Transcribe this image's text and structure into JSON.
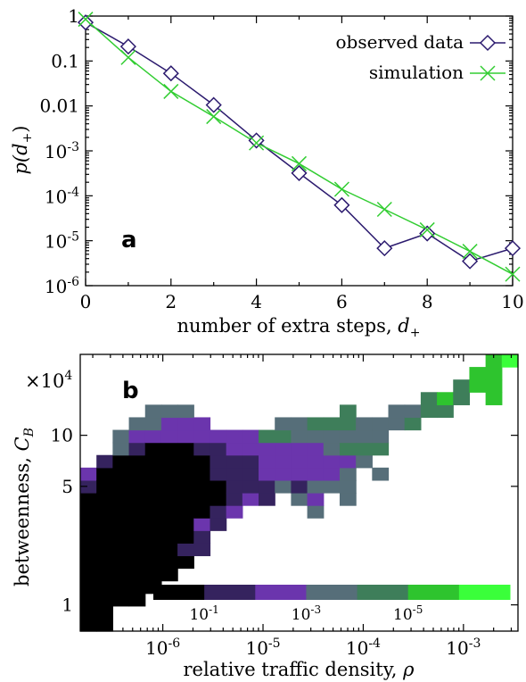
{
  "chart_data": [
    {
      "panel_label": "a",
      "type": "line",
      "xlabel": "number of extra steps, d+",
      "xlabel_main": "number of extra steps, ",
      "xlabel_var": "d",
      "xlabel_sub": "+",
      "ylabel": "p(d+)",
      "ylabel_main": "p(d",
      "ylabel_sub": "+",
      "ylabel_end": ")",
      "y_scale": "log",
      "xlim": [
        0,
        10
      ],
      "ylim": [
        1e-06,
        1
      ],
      "x_ticks": [
        0,
        2,
        4,
        6,
        8,
        10
      ],
      "y_ticks": [
        {
          "value": 1,
          "label": "1"
        },
        {
          "value": 0.1,
          "label": "0.1"
        },
        {
          "value": 0.01,
          "label": "0.01"
        },
        {
          "value": 0.001,
          "base": "10",
          "exp": "-3"
        },
        {
          "value": 0.0001,
          "base": "10",
          "exp": "-4"
        },
        {
          "value": 1e-05,
          "base": "10",
          "exp": "-5"
        },
        {
          "value": 1e-06,
          "base": "10",
          "exp": "-6"
        }
      ],
      "legend_position": "top-right",
      "series": [
        {
          "name": "observed data",
          "marker": "diamond",
          "color": "#2b1a6e",
          "x": [
            0,
            1,
            2,
            3,
            4,
            5,
            6,
            7,
            8,
            9,
            10
          ],
          "y": [
            0.72,
            0.21,
            0.053,
            0.0105,
            0.0017,
            0.00032,
            6.2e-05,
            6.8e-06,
            1.45e-05,
            3.5e-06,
            6.8e-06
          ]
        },
        {
          "name": "simulation",
          "marker": "x",
          "color": "#32cd32",
          "x": [
            0,
            1,
            2,
            3,
            4,
            5,
            6,
            7,
            8,
            9,
            10
          ],
          "y": [
            0.85,
            0.12,
            0.021,
            0.0058,
            0.0015,
            0.00052,
            0.00014,
            5e-05,
            1.75e-05,
            5.8e-06,
            1.8e-06
          ]
        }
      ]
    },
    {
      "panel_label": "b",
      "type": "heatmap",
      "xlabel": "relative traffic density, ρ",
      "xlabel_main": "relative traffic density, ",
      "xlabel_var": "ρ",
      "ylabel": "betweenness, CB",
      "ylabel_main": "betweenness, ",
      "ylabel_var": "C",
      "ylabel_sub": "B",
      "x_scale": "log",
      "y_scale": "log",
      "xlim": [
        1.5e-07,
        0.0035
      ],
      "ylim": [
        7000,
        300000
      ],
      "y_multiplier": {
        "symbol": "×10",
        "exp": "4"
      },
      "x_ticks": [
        {
          "value": 1e-06,
          "base": "10",
          "exp": "-6"
        },
        {
          "value": 1e-05,
          "base": "10",
          "exp": "-5"
        },
        {
          "value": 0.0001,
          "base": "10",
          "exp": "-4"
        },
        {
          "value": 0.001,
          "base": "10",
          "exp": "-3"
        }
      ],
      "y_ticks": [
        {
          "value": 10000,
          "label": "1"
        },
        {
          "value": 50000,
          "label": "5"
        },
        {
          "value": 100000,
          "label": "10"
        }
      ],
      "colorbar": {
        "colors": [
          "#000000",
          "#35235e",
          "#6b35ad",
          "#566e79",
          "#3e7e5a",
          "#2ec42e",
          "#3aff3a"
        ],
        "labels": [
          {
            "base": "10",
            "exp": "-1"
          },
          {
            "base": "10",
            "exp": "-3"
          },
          {
            "base": "10",
            "exp": "-5"
          }
        ]
      },
      "grid": {
        "columns": 27,
        "rows": 22,
        "x_start": 1.5e-07,
        "x_end": 0.0035,
        "y_start": 7000,
        "y_end": 300000
      },
      "cells": [
        [
          0,
          0,
          0
        ],
        [
          0,
          1,
          0
        ],
        [
          0,
          2,
          0
        ],
        [
          0,
          3,
          0
        ],
        [
          0,
          4,
          0
        ],
        [
          0,
          5,
          0
        ],
        [
          0,
          6,
          0
        ],
        [
          0,
          7,
          0
        ],
        [
          0,
          8,
          0
        ],
        [
          0,
          9,
          0
        ],
        [
          0,
          10,
          0
        ],
        [
          0,
          11,
          1
        ],
        [
          0,
          12,
          2
        ],
        [
          1,
          0,
          0
        ],
        [
          1,
          1,
          0
        ],
        [
          1,
          2,
          0
        ],
        [
          1,
          3,
          0
        ],
        [
          1,
          4,
          0
        ],
        [
          1,
          5,
          0
        ],
        [
          1,
          6,
          0
        ],
        [
          1,
          7,
          0
        ],
        [
          1,
          8,
          0
        ],
        [
          1,
          9,
          0
        ],
        [
          1,
          10,
          0
        ],
        [
          1,
          11,
          0
        ],
        [
          1,
          12,
          0
        ],
        [
          1,
          13,
          1
        ],
        [
          2,
          2,
          0
        ],
        [
          2,
          3,
          0
        ],
        [
          2,
          4,
          0
        ],
        [
          2,
          5,
          0
        ],
        [
          2,
          6,
          0
        ],
        [
          2,
          7,
          0
        ],
        [
          2,
          8,
          0
        ],
        [
          2,
          9,
          0
        ],
        [
          2,
          10,
          0
        ],
        [
          2,
          11,
          0
        ],
        [
          2,
          12,
          0
        ],
        [
          2,
          13,
          0
        ],
        [
          2,
          14,
          3
        ],
        [
          2,
          15,
          3
        ],
        [
          3,
          2,
          0
        ],
        [
          3,
          3,
          0
        ],
        [
          3,
          4,
          0
        ],
        [
          3,
          5,
          0
        ],
        [
          3,
          6,
          0
        ],
        [
          3,
          7,
          0
        ],
        [
          3,
          8,
          0
        ],
        [
          3,
          9,
          0
        ],
        [
          3,
          10,
          0
        ],
        [
          3,
          11,
          0
        ],
        [
          3,
          12,
          0
        ],
        [
          3,
          13,
          0
        ],
        [
          3,
          14,
          1
        ],
        [
          3,
          15,
          2
        ],
        [
          3,
          16,
          3
        ],
        [
          4,
          3,
          0
        ],
        [
          4,
          4,
          0
        ],
        [
          4,
          5,
          0
        ],
        [
          4,
          6,
          0
        ],
        [
          4,
          7,
          0
        ],
        [
          4,
          8,
          0
        ],
        [
          4,
          9,
          0
        ],
        [
          4,
          10,
          0
        ],
        [
          4,
          11,
          0
        ],
        [
          4,
          12,
          0
        ],
        [
          4,
          13,
          0
        ],
        [
          4,
          14,
          0
        ],
        [
          4,
          15,
          2
        ],
        [
          4,
          16,
          3
        ],
        [
          4,
          17,
          3
        ],
        [
          5,
          4,
          0
        ],
        [
          5,
          5,
          0
        ],
        [
          5,
          6,
          0
        ],
        [
          5,
          7,
          0
        ],
        [
          5,
          8,
          0
        ],
        [
          5,
          9,
          0
        ],
        [
          5,
          10,
          0
        ],
        [
          5,
          11,
          0
        ],
        [
          5,
          12,
          0
        ],
        [
          5,
          13,
          0
        ],
        [
          5,
          14,
          0
        ],
        [
          5,
          15,
          2
        ],
        [
          5,
          16,
          2
        ],
        [
          5,
          17,
          3
        ],
        [
          6,
          5,
          0
        ],
        [
          6,
          6,
          1
        ],
        [
          6,
          7,
          0
        ],
        [
          6,
          8,
          0
        ],
        [
          6,
          9,
          0
        ],
        [
          6,
          10,
          0
        ],
        [
          6,
          11,
          0
        ],
        [
          6,
          12,
          0
        ],
        [
          6,
          13,
          0
        ],
        [
          6,
          14,
          0
        ],
        [
          6,
          15,
          2
        ],
        [
          6,
          16,
          2
        ],
        [
          6,
          17,
          3
        ],
        [
          7,
          6,
          1
        ],
        [
          7,
          7,
          1
        ],
        [
          7,
          8,
          2
        ],
        [
          7,
          9,
          0
        ],
        [
          7,
          10,
          0
        ],
        [
          7,
          11,
          0
        ],
        [
          7,
          12,
          0
        ],
        [
          7,
          13,
          0
        ],
        [
          7,
          14,
          1
        ],
        [
          7,
          15,
          2
        ],
        [
          7,
          16,
          2
        ],
        [
          8,
          8,
          1
        ],
        [
          8,
          9,
          1
        ],
        [
          8,
          10,
          0
        ],
        [
          8,
          11,
          0
        ],
        [
          8,
          12,
          1
        ],
        [
          8,
          13,
          1
        ],
        [
          8,
          14,
          1
        ],
        [
          8,
          15,
          2
        ],
        [
          9,
          9,
          2
        ],
        [
          9,
          10,
          1
        ],
        [
          9,
          11,
          1
        ],
        [
          9,
          12,
          1
        ],
        [
          9,
          13,
          1
        ],
        [
          9,
          14,
          2
        ],
        [
          9,
          15,
          2
        ],
        [
          10,
          10,
          2
        ],
        [
          10,
          11,
          1
        ],
        [
          10,
          12,
          1
        ],
        [
          10,
          13,
          1
        ],
        [
          10,
          14,
          2
        ],
        [
          10,
          15,
          2
        ],
        [
          11,
          10,
          1
        ],
        [
          11,
          11,
          1
        ],
        [
          11,
          12,
          2
        ],
        [
          11,
          13,
          2
        ],
        [
          11,
          14,
          2
        ],
        [
          11,
          15,
          4
        ],
        [
          12,
          11,
          3
        ],
        [
          12,
          12,
          2
        ],
        [
          12,
          13,
          2
        ],
        [
          12,
          14,
          2
        ],
        [
          12,
          15,
          4
        ],
        [
          12,
          16,
          3
        ],
        [
          13,
          10,
          3
        ],
        [
          13,
          11,
          1
        ],
        [
          13,
          12,
          2
        ],
        [
          13,
          13,
          2
        ],
        [
          13,
          14,
          2
        ],
        [
          13,
          15,
          3
        ],
        [
          13,
          16,
          3
        ],
        [
          14,
          9,
          3
        ],
        [
          14,
          10,
          2
        ],
        [
          14,
          11,
          3
        ],
        [
          14,
          12,
          2
        ],
        [
          14,
          13,
          2
        ],
        [
          14,
          14,
          2
        ],
        [
          14,
          15,
          3
        ],
        [
          14,
          16,
          4
        ],
        [
          15,
          11,
          3
        ],
        [
          15,
          12,
          2
        ],
        [
          15,
          13,
          2
        ],
        [
          15,
          14,
          3
        ],
        [
          15,
          15,
          3
        ],
        [
          15,
          16,
          4
        ],
        [
          16,
          10,
          3
        ],
        [
          16,
          11,
          3
        ],
        [
          16,
          12,
          3
        ],
        [
          16,
          13,
          2
        ],
        [
          16,
          14,
          4
        ],
        [
          16,
          15,
          3
        ],
        [
          16,
          16,
          4
        ],
        [
          16,
          17,
          4
        ],
        [
          17,
          13,
          3
        ],
        [
          17,
          14,
          4
        ],
        [
          17,
          15,
          3
        ],
        [
          17,
          16,
          3
        ],
        [
          18,
          12,
          3
        ],
        [
          18,
          14,
          4
        ],
        [
          18,
          15,
          3
        ],
        [
          18,
          16,
          3
        ],
        [
          19,
          16,
          3
        ],
        [
          19,
          17,
          3
        ],
        [
          20,
          16,
          4
        ],
        [
          20,
          17,
          3
        ],
        [
          21,
          17,
          4
        ],
        [
          21,
          18,
          4
        ],
        [
          22,
          17,
          4
        ],
        [
          22,
          18,
          5
        ],
        [
          23,
          18,
          4
        ],
        [
          23,
          19,
          4
        ],
        [
          24,
          19,
          5
        ],
        [
          24,
          20,
          5
        ],
        [
          25,
          18,
          5
        ],
        [
          25,
          19,
          5
        ],
        [
          25,
          20,
          5
        ],
        [
          25,
          21,
          5
        ],
        [
          26,
          21,
          6
        ]
      ]
    }
  ]
}
